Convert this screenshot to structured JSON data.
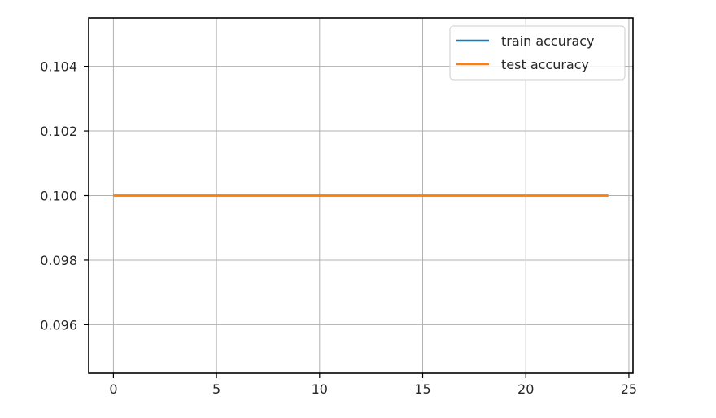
{
  "chart_data": {
    "type": "line",
    "title": "",
    "xlabel": "",
    "ylabel": "",
    "x": [
      0,
      1,
      2,
      3,
      4,
      5,
      6,
      7,
      8,
      9,
      10,
      11,
      12,
      13,
      14,
      15,
      16,
      17,
      18,
      19,
      20,
      21,
      22,
      23,
      24
    ],
    "series": [
      {
        "name": "train accuracy",
        "color": "#1f77b4",
        "values": [
          0.1,
          0.1,
          0.1,
          0.1,
          0.1,
          0.1,
          0.1,
          0.1,
          0.1,
          0.1,
          0.1,
          0.1,
          0.1,
          0.1,
          0.1,
          0.1,
          0.1,
          0.1,
          0.1,
          0.1,
          0.1,
          0.1,
          0.1,
          0.1,
          0.1
        ]
      },
      {
        "name": "test accuracy",
        "color": "#ff7f0e",
        "values": [
          0.1,
          0.1,
          0.1,
          0.1,
          0.1,
          0.1,
          0.1,
          0.1,
          0.1,
          0.1,
          0.1,
          0.1,
          0.1,
          0.1,
          0.1,
          0.1,
          0.1,
          0.1,
          0.1,
          0.1,
          0.1,
          0.1,
          0.1,
          0.1,
          0.1
        ]
      }
    ],
    "xlim": [
      -1.2,
      25.2
    ],
    "ylim": [
      0.0945,
      0.1055
    ],
    "xticks": [
      0,
      5,
      10,
      15,
      20,
      25
    ],
    "xtick_labels": [
      "0",
      "5",
      "10",
      "15",
      "20",
      "25"
    ],
    "yticks": [
      0.096,
      0.098,
      0.1,
      0.102,
      0.104
    ],
    "ytick_labels": [
      "0.096",
      "0.098",
      "0.100",
      "0.102",
      "0.104"
    ],
    "grid": true,
    "legend_position": "top-right"
  }
}
